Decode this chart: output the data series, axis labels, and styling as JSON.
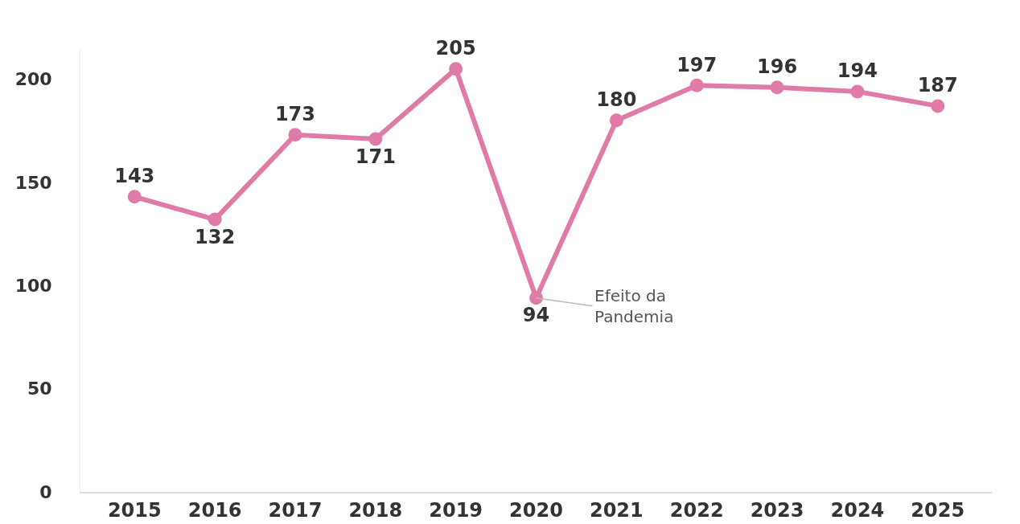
{
  "chart_data": {
    "type": "line",
    "categories": [
      "2015",
      "2016",
      "2017",
      "2018",
      "2019",
      "2020",
      "2021",
      "2022",
      "2023",
      "2024",
      "2025"
    ],
    "series": [
      {
        "color": "#e07ba7",
        "values": [
          143,
          132,
          173,
          171,
          205,
          94,
          180,
          197,
          196,
          194,
          187
        ]
      }
    ],
    "ylim": [
      0,
      215
    ],
    "yticks": [
      0,
      50,
      100,
      150,
      200
    ],
    "grid": false,
    "legend": false,
    "marker": "circle",
    "line_style": "solid",
    "data_labels": true,
    "annotations": [
      {
        "text": "Efeito da\nPandemia",
        "x": "2020",
        "y": 94
      }
    ]
  }
}
